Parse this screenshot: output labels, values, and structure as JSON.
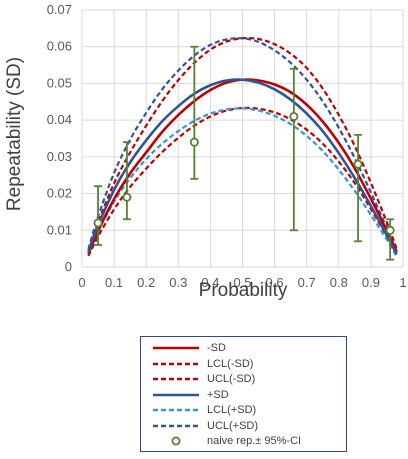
{
  "chart_data": {
    "type": "line",
    "xlabel": "Probability",
    "ylabel": "Repeatability (SD)",
    "xlim": [
      0,
      1
    ],
    "ylim": [
      0,
      0.07
    ],
    "xticks": [
      "0",
      "0.1",
      "0.2",
      "0.3",
      "0.4",
      "0.5",
      "0.6",
      "0.7",
      "0.8",
      "0.9",
      "1"
    ],
    "yticks": [
      "0",
      "0.01",
      "0.02",
      "0.03",
      "0.04",
      "0.05",
      "0.06",
      "0.07"
    ],
    "grid": true,
    "legend_position": "bottom",
    "series": [
      {
        "name": "-SD",
        "color": "#c00000",
        "style": "solid",
        "x": [
          0.02,
          0.05,
          0.1,
          0.15,
          0.2,
          0.25,
          0.3,
          0.35,
          0.4,
          0.45,
          0.5,
          0.55,
          0.6,
          0.65,
          0.7,
          0.75,
          0.8,
          0.85,
          0.9,
          0.95,
          0.98
        ],
        "y": [
          0.0035,
          0.0098,
          0.0185,
          0.0255,
          0.0312,
          0.0368,
          0.0414,
          0.0452,
          0.0482,
          0.0502,
          0.051,
          0.0508,
          0.0497,
          0.0476,
          0.0442,
          0.0396,
          0.0338,
          0.0268,
          0.0186,
          0.0098,
          0.004
        ]
      },
      {
        "name": "LCL(-SD)",
        "color": "#c00000",
        "style": "dashed",
        "x": [
          0.02,
          0.05,
          0.1,
          0.15,
          0.2,
          0.25,
          0.3,
          0.35,
          0.4,
          0.45,
          0.5,
          0.55,
          0.6,
          0.65,
          0.7,
          0.75,
          0.8,
          0.85,
          0.9,
          0.95,
          0.98
        ],
        "y": [
          0.003,
          0.0083,
          0.0157,
          0.0218,
          0.0268,
          0.0313,
          0.0352,
          0.0385,
          0.041,
          0.0426,
          0.0433,
          0.0431,
          0.0421,
          0.0402,
          0.0374,
          0.0336,
          0.0287,
          0.0228,
          0.0158,
          0.0083,
          0.0034
        ]
      },
      {
        "name": "UCL(-SD)",
        "color": "#c00000",
        "style": "dashed",
        "x": [
          0.02,
          0.05,
          0.1,
          0.15,
          0.2,
          0.25,
          0.3,
          0.35,
          0.4,
          0.45,
          0.5,
          0.55,
          0.6,
          0.65,
          0.7,
          0.75,
          0.8,
          0.85,
          0.9,
          0.95,
          0.98
        ],
        "y": [
          0.0043,
          0.0121,
          0.0228,
          0.0312,
          0.0385,
          0.0452,
          0.0509,
          0.0556,
          0.0592,
          0.0614,
          0.0623,
          0.0621,
          0.0607,
          0.0581,
          0.0542,
          0.0486,
          0.0414,
          0.0329,
          0.0229,
          0.0121,
          0.005
        ]
      },
      {
        "name": "+SD",
        "color": "#2f5597",
        "style": "solid",
        "x": [
          0.02,
          0.05,
          0.1,
          0.15,
          0.2,
          0.25,
          0.3,
          0.35,
          0.4,
          0.45,
          0.5,
          0.55,
          0.6,
          0.65,
          0.7,
          0.75,
          0.8,
          0.85,
          0.9,
          0.95,
          0.98
        ],
        "y": [
          0.004,
          0.0113,
          0.021,
          0.0285,
          0.0345,
          0.0397,
          0.0438,
          0.0472,
          0.0495,
          0.0508,
          0.051,
          0.0502,
          0.0484,
          0.0456,
          0.0418,
          0.037,
          0.031,
          0.0242,
          0.0166,
          0.0086,
          0.0035
        ]
      },
      {
        "name": "LCL(+SD)",
        "color": "#2e9ad4",
        "style": "dashed",
        "x": [
          0.02,
          0.05,
          0.1,
          0.15,
          0.2,
          0.25,
          0.3,
          0.35,
          0.4,
          0.45,
          0.5,
          0.55,
          0.6,
          0.65,
          0.7,
          0.75,
          0.8,
          0.85,
          0.9,
          0.95,
          0.98
        ],
        "y": [
          0.0034,
          0.0096,
          0.0178,
          0.0242,
          0.0294,
          0.0336,
          0.037,
          0.0398,
          0.0418,
          0.0429,
          0.0432,
          0.0426,
          0.0412,
          0.0389,
          0.0357,
          0.0316,
          0.0265,
          0.0207,
          0.0142,
          0.0074,
          0.003
        ]
      },
      {
        "name": "UCL(+SD)",
        "color": "#2f5597",
        "style": "dashed",
        "x": [
          0.02,
          0.05,
          0.1,
          0.15,
          0.2,
          0.25,
          0.3,
          0.35,
          0.4,
          0.45,
          0.5,
          0.55,
          0.6,
          0.65,
          0.7,
          0.75,
          0.8,
          0.85,
          0.9,
          0.95,
          0.98
        ],
        "y": [
          0.0049,
          0.0137,
          0.0256,
          0.0347,
          0.042,
          0.0484,
          0.0535,
          0.0576,
          0.0605,
          0.062,
          0.0623,
          0.0613,
          0.059,
          0.0556,
          0.051,
          0.0451,
          0.0379,
          0.0296,
          0.0203,
          0.0105,
          0.0043
        ]
      }
    ],
    "points": {
      "name": "naive rep.± 95%-CI",
      "color": "#548235",
      "x": [
        0.05,
        0.14,
        0.35,
        0.66,
        0.86,
        0.96
      ],
      "y": [
        0.012,
        0.019,
        0.034,
        0.041,
        0.028,
        0.01
      ],
      "ci_low": [
        0.006,
        0.013,
        0.024,
        0.01,
        0.007,
        0.002
      ],
      "ci_high": [
        0.022,
        0.034,
        0.06,
        0.054,
        0.036,
        0.013
      ]
    }
  }
}
